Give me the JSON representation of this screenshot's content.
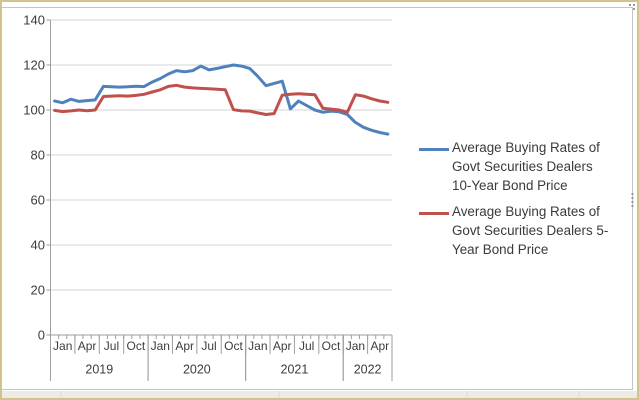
{
  "chart_data": {
    "type": "line",
    "title": "",
    "x": [
      "Jan 2019",
      "Feb 2019",
      "Mar 2019",
      "Apr 2019",
      "May 2019",
      "Jun 2019",
      "Jul 2019",
      "Aug 2019",
      "Sep 2019",
      "Oct 2019",
      "Nov 2019",
      "Dec 2019",
      "Jan 2020",
      "Feb 2020",
      "Mar 2020",
      "Apr 2020",
      "May 2020",
      "Jun 2020",
      "Jul 2020",
      "Aug 2020",
      "Sep 2020",
      "Oct 2020",
      "Nov 2020",
      "Dec 2020",
      "Jan 2021",
      "Feb 2021",
      "Mar 2021",
      "Apr 2021",
      "May 2021",
      "Jun 2021",
      "Jul 2021",
      "Aug 2021",
      "Sep 2021",
      "Oct 2021",
      "Nov 2021",
      "Dec 2021",
      "Jan 2022",
      "Feb 2022",
      "Mar 2022",
      "Apr 2022",
      "May 2022",
      "Jun 2022"
    ],
    "series": [
      {
        "name": "Average Buying Rates of Govt Securities Dealers 10-Year Bond Price",
        "color": "#4F81BD",
        "values": [
          104,
          103.2,
          104.8,
          103.8,
          104.2,
          104.5,
          110.5,
          110.3,
          110.2,
          110.3,
          110.6,
          110.4,
          112.4,
          114,
          116,
          117.5,
          117,
          117.5,
          119.5,
          117.8,
          118.5,
          119.3,
          120,
          119.5,
          118.5,
          115,
          110.8,
          111.8,
          112.8,
          100.5,
          104,
          102,
          100,
          99,
          99.5,
          99.2,
          98,
          94.5,
          92.3,
          91,
          90,
          89.3
        ]
      },
      {
        "name": "Average Buying Rates of Govt Securities Dealers 5-Year Bond Price",
        "color": "#C0504D",
        "values": [
          99.8,
          99.3,
          99.6,
          100,
          99.7,
          100,
          106,
          106.2,
          106.3,
          106.2,
          106.5,
          107,
          108,
          109,
          110.5,
          111,
          110.2,
          109.8,
          109.6,
          109.4,
          109.2,
          109,
          100.2,
          99.6,
          99.5,
          98.7,
          98,
          98.4,
          106.6,
          107,
          107.2,
          107,
          106.8,
          100.8,
          100.4,
          100,
          99,
          106.8,
          106.2,
          105,
          104,
          103.4
        ]
      }
    ],
    "ylim": [
      0,
      140
    ],
    "yticks": [
      0,
      20,
      40,
      60,
      80,
      100,
      120,
      140
    ],
    "grid": true,
    "legend_position": "right",
    "x_axis": {
      "quarter_labels": [
        "Jan",
        "Apr",
        "Jul",
        "Oct",
        "Jan",
        "Apr",
        "Jul",
        "Oct",
        "Jan",
        "Apr",
        "Jul",
        "Oct",
        "Jan",
        "Apr"
      ],
      "year_labels": [
        "2019",
        "2020",
        "2021",
        "2022"
      ],
      "year_month_spans": [
        [
          0,
          12
        ],
        [
          12,
          24
        ],
        [
          24,
          36
        ],
        [
          36,
          42
        ]
      ]
    },
    "colors": {
      "grid": "#d4d4d4",
      "axis": "#9e9e9e",
      "text": "#3c3c3c",
      "object_border": "#bdbdbd",
      "handle": "#9a9a9a"
    }
  }
}
